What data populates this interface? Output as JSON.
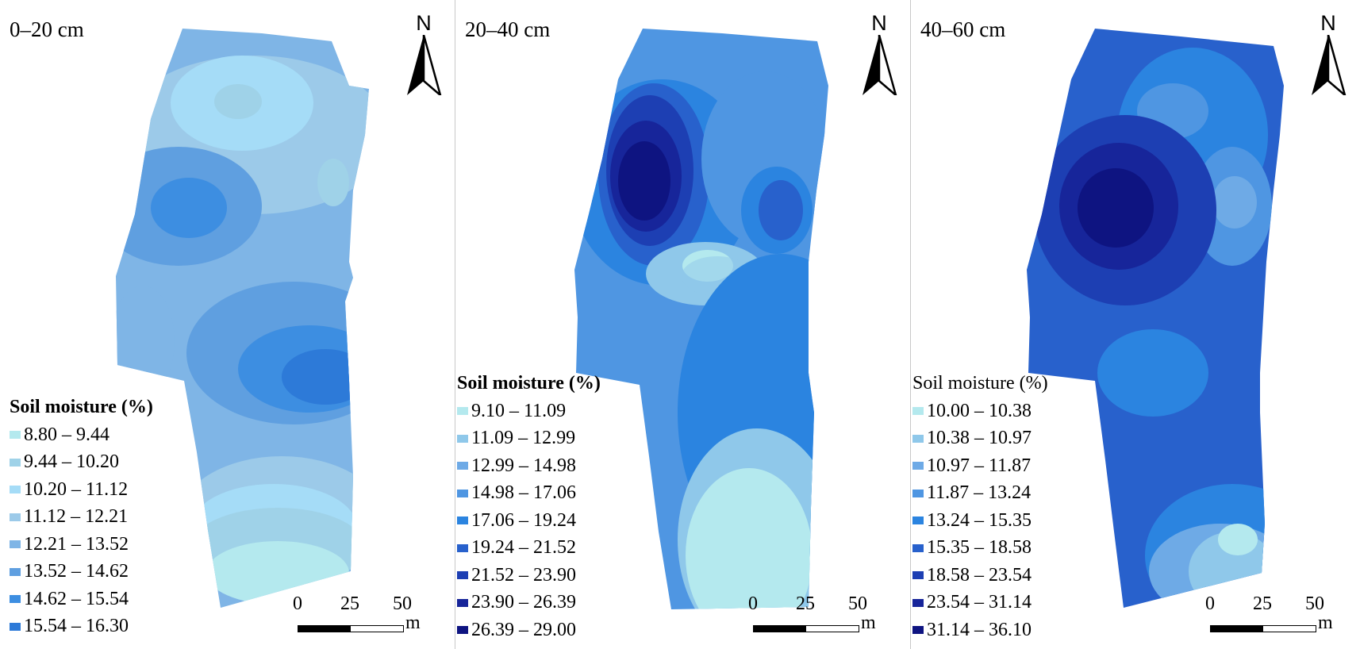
{
  "figure": {
    "panels": [
      {
        "depth_label": "0–20 cm",
        "north_label": "N",
        "legend": {
          "title": "Soil moisture (%)",
          "classes": [
            {
              "range": "8.80 – 9.44",
              "color": "#b4e9ee"
            },
            {
              "range": "9.44 – 10.20",
              "color": "#9fd2e8"
            },
            {
              "range": "10.20 – 11.12",
              "color": "#a5dcf7"
            },
            {
              "range": "11.12 – 12.21",
              "color": "#9ccae9"
            },
            {
              "range": "12.21 – 13.52",
              "color": "#7fb5e6"
            },
            {
              "range": "13.52 – 14.62",
              "color": "#5f9fe0"
            },
            {
              "range": "14.62 – 15.54",
              "color": "#3d8ee1"
            },
            {
              "range": "15.54 – 16.30",
              "color": "#2d7ad8"
            }
          ]
        },
        "scale": {
          "ticks": [
            "0",
            "25",
            "50"
          ],
          "unit": "m"
        }
      },
      {
        "depth_label": "20–40 cm",
        "north_label": "N",
        "legend": {
          "title": "Soil moisture (%)",
          "classes": [
            {
              "range": "9.10 – 11.09",
              "color": "#b4e9ee"
            },
            {
              "range": "11.09 – 12.99",
              "color": "#8fc8ea"
            },
            {
              "range": "12.99 – 14.98",
              "color": "#6eaae6"
            },
            {
              "range": "14.98 – 17.06",
              "color": "#4f96e2"
            },
            {
              "range": "17.06 – 19.24",
              "color": "#2b84e0"
            },
            {
              "range": "19.24 – 21.52",
              "color": "#2861cc"
            },
            {
              "range": "21.52 – 23.90",
              "color": "#1d3fb3"
            },
            {
              "range": "23.90 – 26.39",
              "color": "#17259a"
            },
            {
              "range": "26.39 – 29.00",
              "color": "#0e1481"
            }
          ]
        },
        "scale": {
          "ticks": [
            "0",
            "25",
            "50"
          ],
          "unit": "m"
        }
      },
      {
        "depth_label": "40–60 cm",
        "north_label": "N",
        "legend": {
          "title": "Soil moisture (%)",
          "classes": [
            {
              "range": "10.00 – 10.38",
              "color": "#b4e9ee"
            },
            {
              "range": "10.38 – 10.97",
              "color": "#8fc8ea"
            },
            {
              "range": "10.97 – 11.87",
              "color": "#6eaae6"
            },
            {
              "range": "11.87 – 13.24",
              "color": "#4f96e2"
            },
            {
              "range": "13.24 – 15.35",
              "color": "#2b84e0"
            },
            {
              "range": "15.35 – 18.58",
              "color": "#2861cc"
            },
            {
              "range": "18.58 – 23.54",
              "color": "#1d3fb3"
            },
            {
              "range": "23.54 – 31.14",
              "color": "#17259a"
            },
            {
              "range": "31.14 – 36.10",
              "color": "#0e1481"
            }
          ]
        },
        "scale": {
          "ticks": [
            "0",
            "25",
            "50"
          ],
          "unit": "m"
        }
      }
    ]
  }
}
